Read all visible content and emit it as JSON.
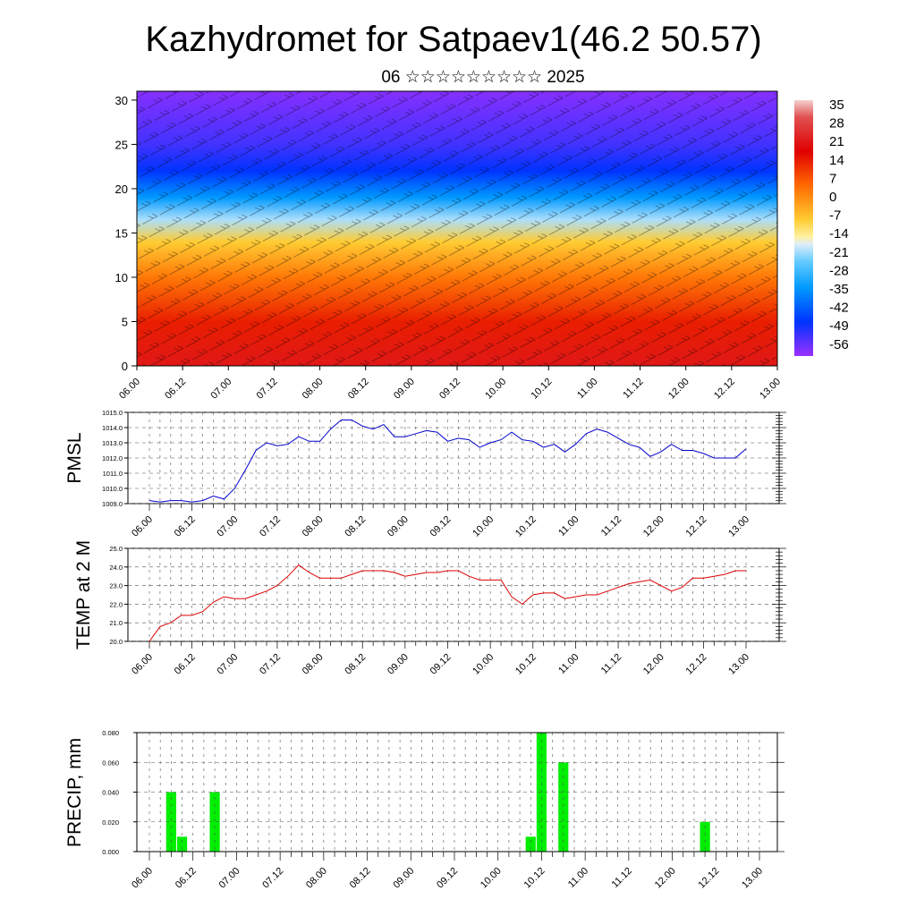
{
  "title": "Kazhydromet for Satpaev1(46.2 50.57)",
  "subtitle": "06 ☆☆☆☆☆☆☆☆☆ 2025",
  "time_ticks": [
    "06.00",
    "06.12",
    "07.00",
    "07.12",
    "08.00",
    "08.12",
    "09.00",
    "09.12",
    "10.00",
    "10.12",
    "11.00",
    "11.12",
    "12.00",
    "12.12",
    "13.00"
  ],
  "chart_data": [
    {
      "type": "heatmap",
      "x_ticks_ref": "time_ticks",
      "yticks": [
        0,
        5,
        10,
        15,
        20,
        25,
        30
      ],
      "ylim": [
        0,
        31
      ],
      "colorbar": {
        "labels": [
          "35",
          "28",
          "21",
          "14",
          "7",
          "0",
          "-7",
          "-14",
          "-21",
          "-28",
          "-35",
          "-42",
          "-49",
          "-56"
        ],
        "min": -63,
        "max": 42,
        "stops": [
          {
            "v": 42,
            "c": "#f5d0d0"
          },
          {
            "v": 35,
            "c": "#e05050"
          },
          {
            "v": 21,
            "c": "#e00000"
          },
          {
            "v": 7,
            "c": "#ff6a00"
          },
          {
            "v": -7,
            "c": "#ffcc33"
          },
          {
            "v": -14,
            "c": "#fff0a0"
          },
          {
            "v": -17,
            "c": "#e0eef8"
          },
          {
            "v": -24,
            "c": "#66ccff"
          },
          {
            "v": -35,
            "c": "#0099ff"
          },
          {
            "v": -49,
            "c": "#0033ff"
          },
          {
            "v": -63,
            "c": "#9b30ff"
          }
        ]
      },
      "temperature_profile": [
        {
          "h": 0,
          "t": 25
        },
        {
          "h": 5,
          "t": 17
        },
        {
          "h": 10,
          "t": 5
        },
        {
          "h": 14,
          "t": -7
        },
        {
          "h": 16.5,
          "t": -20
        },
        {
          "h": 19,
          "t": -35
        },
        {
          "h": 22,
          "t": -49
        },
        {
          "h": 25,
          "t": -55
        },
        {
          "h": 28,
          "t": -58
        },
        {
          "h": 31,
          "t": -61
        }
      ],
      "vector_overlay": "wind barbs"
    },
    {
      "type": "line",
      "ylabel": "PMSL",
      "yticks": [
        "1009.0",
        "1010.0",
        "1011.0",
        "1012.0",
        "1013.0",
        "1014.0",
        "1015.0"
      ],
      "ylim": [
        1009.0,
        1015.0
      ],
      "color": "#0000cc",
      "x_ticks_ref": "time_ticks",
      "values": [
        1009.2,
        1009.1,
        1009.2,
        1009.2,
        1009.1,
        1009.2,
        1009.5,
        1009.3,
        1010.0,
        1011.2,
        1012.5,
        1013.0,
        1012.8,
        1012.9,
        1013.4,
        1013.1,
        1013.1,
        1013.9,
        1014.5,
        1014.5,
        1014.1,
        1013.9,
        1014.2,
        1013.4,
        1013.4,
        1013.6,
        1013.8,
        1013.7,
        1013.1,
        1013.3,
        1013.2,
        1012.7,
        1013.0,
        1013.2,
        1013.7,
        1013.2,
        1013.1,
        1012.7,
        1012.9,
        1012.4,
        1012.9,
        1013.6,
        1013.9,
        1013.7,
        1013.3,
        1012.9,
        1012.7,
        1012.1,
        1012.4,
        1012.9,
        1012.5,
        1012.5,
        1012.3,
        1012.0,
        1012.0,
        1012.0,
        1012.6
      ]
    },
    {
      "type": "line",
      "ylabel": "TEMP at 2 M",
      "yticks": [
        "20.0",
        "21.0",
        "22.0",
        "23.0",
        "24.0",
        "25.0"
      ],
      "ylim": [
        20.0,
        25.0
      ],
      "color": "#dd0000",
      "x_ticks_ref": "time_ticks",
      "values": [
        20.0,
        20.8,
        21.0,
        21.4,
        21.4,
        21.6,
        22.1,
        22.4,
        22.3,
        22.3,
        22.5,
        22.7,
        23.0,
        23.5,
        24.1,
        23.7,
        23.4,
        23.4,
        23.4,
        23.6,
        23.8,
        23.8,
        23.8,
        23.7,
        23.5,
        23.6,
        23.7,
        23.7,
        23.8,
        23.8,
        23.5,
        23.3,
        23.3,
        23.3,
        22.4,
        22.0,
        22.5,
        22.6,
        22.6,
        22.3,
        22.4,
        22.5,
        22.5,
        22.7,
        22.9,
        23.1,
        23.2,
        23.3,
        23.0,
        22.7,
        22.9,
        23.4,
        23.4,
        23.5,
        23.6,
        23.8,
        23.8
      ]
    },
    {
      "type": "bar",
      "ylabel": "PRECIP, mm",
      "yticks": [
        "0.000",
        "0.020",
        "0.040",
        "0.060",
        "0.080"
      ],
      "ylim": [
        0.0,
        0.08
      ],
      "color": "#00ee00",
      "x_ticks_ref": "time_ticks",
      "bars": [
        {
          "i": 2,
          "v": 0.04
        },
        {
          "i": 3,
          "v": 0.01
        },
        {
          "i": 6,
          "v": 0.04
        },
        {
          "i": 35,
          "v": 0.01
        },
        {
          "i": 36,
          "v": 0.08
        },
        {
          "i": 38,
          "v": 0.06
        },
        {
          "i": 51,
          "v": 0.02
        }
      ]
    }
  ]
}
